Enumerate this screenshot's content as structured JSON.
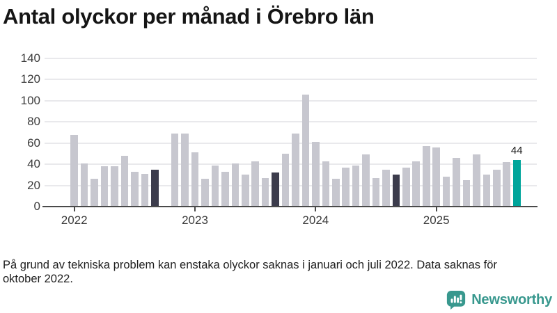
{
  "title": "Antal olyckor per månad i Örebro län",
  "chart_data": {
    "type": "bar",
    "title": "Antal olyckor per månad i Örebro län",
    "xlabel": "",
    "ylabel": "",
    "ylim": [
      0,
      140
    ],
    "yticks": [
      0,
      20,
      40,
      60,
      80,
      100,
      120,
      140
    ],
    "year_ticks": [
      "2022",
      "2023",
      "2024",
      "2025"
    ],
    "grid": "horizontal",
    "legend": "none",
    "months": [
      {
        "month": "2022-01",
        "value": 68
      },
      {
        "month": "2022-02",
        "value": 41
      },
      {
        "month": "2022-03",
        "value": 26
      },
      {
        "month": "2022-04",
        "value": 38
      },
      {
        "month": "2022-05",
        "value": 38
      },
      {
        "month": "2022-06",
        "value": 48
      },
      {
        "month": "2022-07",
        "value": 33
      },
      {
        "month": "2022-08",
        "value": 31
      },
      {
        "month": "2022-09",
        "value": 35
      },
      {
        "month": "2022-10",
        "value": null
      },
      {
        "month": "2022-11",
        "value": 69
      },
      {
        "month": "2022-12",
        "value": 69
      },
      {
        "month": "2023-01",
        "value": 51
      },
      {
        "month": "2023-02",
        "value": 26
      },
      {
        "month": "2023-03",
        "value": 39
      },
      {
        "month": "2023-04",
        "value": 33
      },
      {
        "month": "2023-05",
        "value": 41
      },
      {
        "month": "2023-06",
        "value": 30
      },
      {
        "month": "2023-07",
        "value": 43
      },
      {
        "month": "2023-08",
        "value": 27
      },
      {
        "month": "2023-09",
        "value": 32
      },
      {
        "month": "2023-10",
        "value": 50
      },
      {
        "month": "2023-11",
        "value": 69
      },
      {
        "month": "2023-12",
        "value": 106
      },
      {
        "month": "2024-01",
        "value": 61
      },
      {
        "month": "2024-02",
        "value": 43
      },
      {
        "month": "2024-03",
        "value": 26
      },
      {
        "month": "2024-04",
        "value": 37
      },
      {
        "month": "2024-05",
        "value": 39
      },
      {
        "month": "2024-06",
        "value": 49
      },
      {
        "month": "2024-07",
        "value": 27
      },
      {
        "month": "2024-08",
        "value": 35
      },
      {
        "month": "2024-09",
        "value": 30
      },
      {
        "month": "2024-10",
        "value": 37
      },
      {
        "month": "2024-11",
        "value": 43
      },
      {
        "month": "2024-12",
        "value": 57
      },
      {
        "month": "2025-01",
        "value": 56
      },
      {
        "month": "2025-02",
        "value": 28
      },
      {
        "month": "2025-03",
        "value": 46
      },
      {
        "month": "2025-04",
        "value": 25
      },
      {
        "month": "2025-05",
        "value": 49
      },
      {
        "month": "2025-06",
        "value": 30
      },
      {
        "month": "2025-07",
        "value": 35
      },
      {
        "month": "2025-08",
        "value": 42
      },
      {
        "month": "2025-09",
        "value": 44
      }
    ],
    "highlight_dark": [
      "2022-09",
      "2023-09",
      "2024-09"
    ],
    "highlight_accent": [
      "2025-09"
    ],
    "annotation": {
      "month": "2025-09",
      "label": "44"
    }
  },
  "colors": {
    "bar": "#c7c7cf",
    "bar_dark": "#3c3c4c",
    "bar_accent": "#00a59b",
    "grid": "#e9e9ec",
    "axis": "#4a4a4a",
    "logo": "#38988e"
  },
  "footnote": {
    "lines": [
      "På grund av tekniska problem kan enstaka olyckor saknas i januari och juli 2022. Data saknas för",
      "oktober 2022."
    ]
  },
  "logo": {
    "text": "Newsworthy"
  }
}
